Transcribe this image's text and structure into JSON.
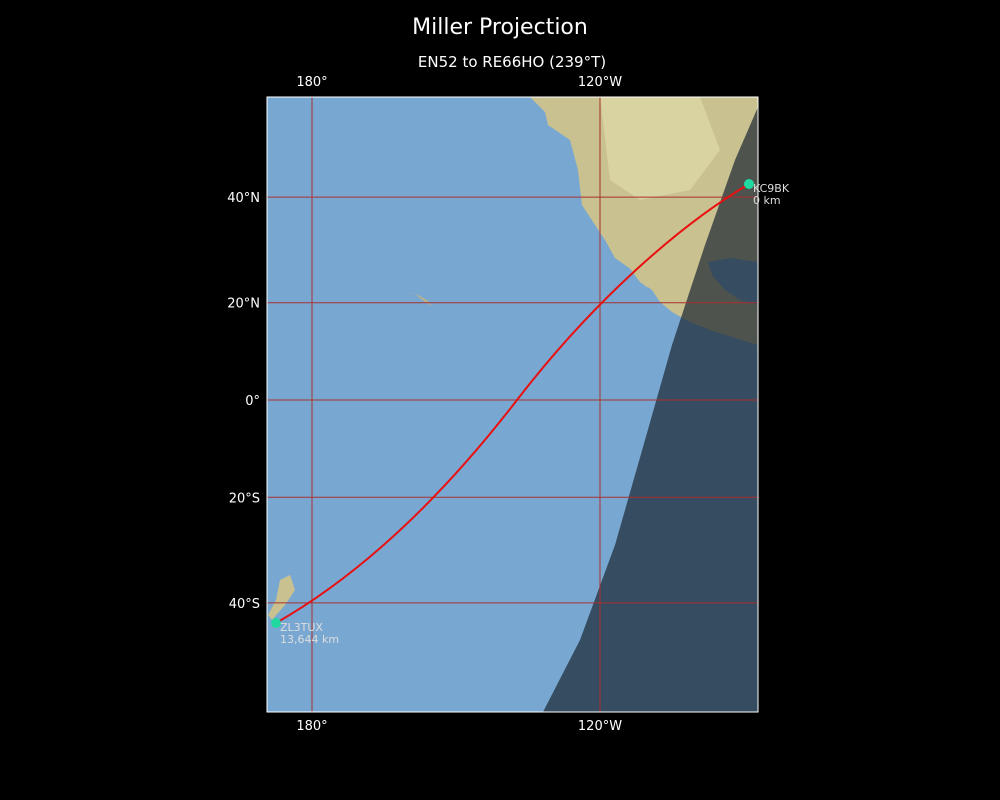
{
  "map": {
    "title": "Miller Projection",
    "subtitle": "EN52 to RE66HO (239°T)",
    "lon_ticks": [
      {
        "value": 180,
        "label": "180°"
      },
      {
        "value": -120,
        "label": "120°W"
      }
    ],
    "lat_ticks": [
      {
        "value": 40,
        "label": "40°N"
      },
      {
        "value": 20,
        "label": "20°N"
      },
      {
        "value": 0,
        "label": "0°"
      },
      {
        "value": -20,
        "label": "20°S"
      },
      {
        "value": -40,
        "label": "40°S"
      }
    ],
    "stations": [
      {
        "name": "KC9BK",
        "distance": "0 km"
      },
      {
        "name": "ZL3TUX",
        "distance": "13,644 km"
      }
    ]
  }
}
